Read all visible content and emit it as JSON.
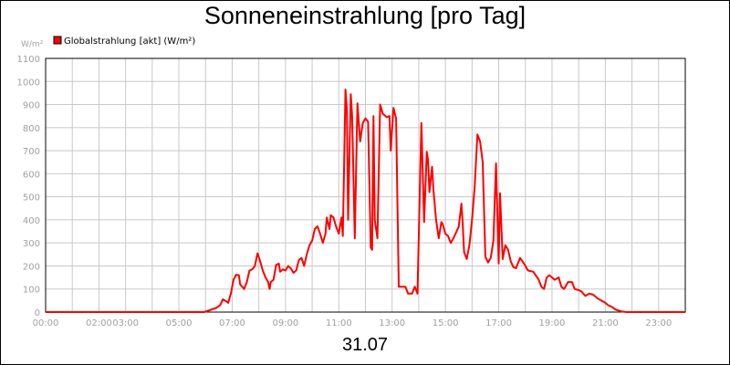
{
  "chart_data": {
    "type": "line",
    "title": "Sonneneinstrahlung [pro Tag]",
    "date_label": "31.07",
    "ylabel": "W/m²",
    "ylim": [
      0,
      1100
    ],
    "y_ticks": [
      0,
      100,
      200,
      300,
      400,
      500,
      600,
      700,
      800,
      900,
      1000,
      1100
    ],
    "xlim": [
      0,
      24
    ],
    "x_tick_labels": [
      {
        "h": 0,
        "label": "00:00"
      },
      {
        "h": 2,
        "label": "02:00"
      },
      {
        "h": 3,
        "label": "03:00"
      },
      {
        "h": 5,
        "label": "05:00"
      },
      {
        "h": 7,
        "label": "07:00"
      },
      {
        "h": 9,
        "label": "09:00"
      },
      {
        "h": 11,
        "label": "11:00"
      },
      {
        "h": 13,
        "label": "13:00"
      },
      {
        "h": 15,
        "label": "15:00"
      },
      {
        "h": 17,
        "label": "17:00"
      },
      {
        "h": 19,
        "label": "19:00"
      },
      {
        "h": 21,
        "label": "21:00"
      },
      {
        "h": 23,
        "label": "23:00"
      }
    ],
    "grid": true,
    "legend_position": "top-left",
    "series": [
      {
        "name": "Globalstrahlung [akt] (W/m²)",
        "color": "#ff0000",
        "points": [
          [
            0,
            0
          ],
          [
            5.95,
            0
          ],
          [
            6.15,
            8
          ],
          [
            6.4,
            18
          ],
          [
            6.55,
            30
          ],
          [
            6.65,
            55
          ],
          [
            6.8,
            45
          ],
          [
            6.85,
            40
          ],
          [
            6.95,
            80
          ],
          [
            7.05,
            140
          ],
          [
            7.15,
            162
          ],
          [
            7.25,
            160
          ],
          [
            7.3,
            120
          ],
          [
            7.45,
            100
          ],
          [
            7.55,
            130
          ],
          [
            7.65,
            180
          ],
          [
            7.75,
            185
          ],
          [
            7.85,
            200
          ],
          [
            7.95,
            255
          ],
          [
            8.05,
            220
          ],
          [
            8.15,
            180
          ],
          [
            8.25,
            150
          ],
          [
            8.35,
            130
          ],
          [
            8.4,
            100
          ],
          [
            8.45,
            130
          ],
          [
            8.55,
            140
          ],
          [
            8.65,
            205
          ],
          [
            8.75,
            210
          ],
          [
            8.8,
            175
          ],
          [
            8.9,
            185
          ],
          [
            9.0,
            180
          ],
          [
            9.1,
            200
          ],
          [
            9.2,
            190
          ],
          [
            9.3,
            170
          ],
          [
            9.4,
            180
          ],
          [
            9.5,
            225
          ],
          [
            9.6,
            235
          ],
          [
            9.7,
            200
          ],
          [
            9.8,
            250
          ],
          [
            9.9,
            290
          ],
          [
            10.0,
            310
          ],
          [
            10.1,
            360
          ],
          [
            10.2,
            372
          ],
          [
            10.3,
            340
          ],
          [
            10.4,
            300
          ],
          [
            10.5,
            340
          ],
          [
            10.55,
            410
          ],
          [
            10.65,
            360
          ],
          [
            10.7,
            420
          ],
          [
            10.8,
            410
          ],
          [
            10.9,
            370
          ],
          [
            11.0,
            340
          ],
          [
            11.1,
            410
          ],
          [
            11.15,
            330
          ],
          [
            11.25,
            965
          ],
          [
            11.3,
            880
          ],
          [
            11.35,
            400
          ],
          [
            11.45,
            945
          ],
          [
            11.5,
            850
          ],
          [
            11.6,
            320
          ],
          [
            11.7,
            905
          ],
          [
            11.8,
            740
          ],
          [
            11.9,
            820
          ],
          [
            12.0,
            840
          ],
          [
            12.1,
            825
          ],
          [
            12.2,
            280
          ],
          [
            12.25,
            270
          ],
          [
            12.3,
            850
          ],
          [
            12.35,
            400
          ],
          [
            12.45,
            320
          ],
          [
            12.55,
            900
          ],
          [
            12.65,
            860
          ],
          [
            12.8,
            845
          ],
          [
            12.9,
            850
          ],
          [
            12.95,
            700
          ],
          [
            13.05,
            885
          ],
          [
            13.15,
            840
          ],
          [
            13.25,
            110
          ],
          [
            13.5,
            110
          ],
          [
            13.6,
            80
          ],
          [
            13.75,
            80
          ],
          [
            13.85,
            110
          ],
          [
            13.95,
            80
          ],
          [
            14.1,
            820
          ],
          [
            14.2,
            390
          ],
          [
            14.3,
            695
          ],
          [
            14.35,
            660
          ],
          [
            14.4,
            520
          ],
          [
            14.5,
            630
          ],
          [
            14.55,
            530
          ],
          [
            14.65,
            400
          ],
          [
            14.75,
            320
          ],
          [
            14.85,
            390
          ],
          [
            14.9,
            380
          ],
          [
            15.0,
            340
          ],
          [
            15.1,
            330
          ],
          [
            15.2,
            300
          ],
          [
            15.3,
            320
          ],
          [
            15.4,
            345
          ],
          [
            15.5,
            370
          ],
          [
            15.6,
            470
          ],
          [
            15.65,
            380
          ],
          [
            15.7,
            260
          ],
          [
            15.8,
            230
          ],
          [
            15.9,
            290
          ],
          [
            16.0,
            400
          ],
          [
            16.1,
            550
          ],
          [
            16.2,
            770
          ],
          [
            16.3,
            740
          ],
          [
            16.4,
            650
          ],
          [
            16.5,
            240
          ],
          [
            16.6,
            215
          ],
          [
            16.7,
            235
          ],
          [
            16.8,
            310
          ],
          [
            16.9,
            645
          ],
          [
            17.0,
            210
          ],
          [
            17.05,
            515
          ],
          [
            17.15,
            230
          ],
          [
            17.25,
            290
          ],
          [
            17.35,
            270
          ],
          [
            17.45,
            220
          ],
          [
            17.55,
            195
          ],
          [
            17.65,
            190
          ],
          [
            17.8,
            235
          ],
          [
            17.95,
            210
          ],
          [
            18.1,
            180
          ],
          [
            18.3,
            175
          ],
          [
            18.5,
            140
          ],
          [
            18.6,
            110
          ],
          [
            18.7,
            100
          ],
          [
            18.8,
            150
          ],
          [
            18.9,
            160
          ],
          [
            19.0,
            150
          ],
          [
            19.1,
            140
          ],
          [
            19.25,
            150
          ],
          [
            19.35,
            110
          ],
          [
            19.45,
            100
          ],
          [
            19.6,
            130
          ],
          [
            19.75,
            130
          ],
          [
            19.85,
            100
          ],
          [
            20.0,
            95
          ],
          [
            20.1,
            90
          ],
          [
            20.25,
            70
          ],
          [
            20.4,
            80
          ],
          [
            20.55,
            75
          ],
          [
            20.7,
            60
          ],
          [
            20.85,
            50
          ],
          [
            21.0,
            40
          ],
          [
            21.1,
            30
          ],
          [
            21.25,
            22
          ],
          [
            21.4,
            10
          ],
          [
            21.6,
            3
          ],
          [
            21.8,
            0
          ],
          [
            24,
            0
          ]
        ]
      }
    ]
  }
}
